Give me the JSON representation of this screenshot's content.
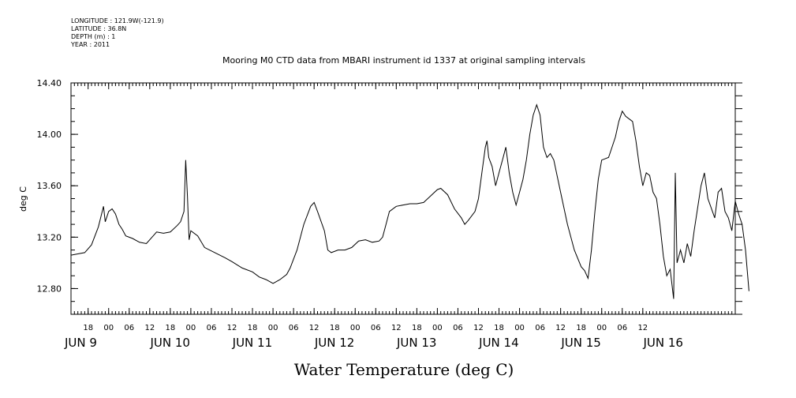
{
  "meta": {
    "longitude": "LONGITUDE : 121.9W(-121.9)",
    "latitude": "LATITUDE : 36.8N",
    "depth": "DEPTH (m) : 1",
    "year": "YEAR : 2011"
  },
  "chart_data": {
    "type": "line",
    "title": "Mooring M0 CTD data from MBARI instrument id 1337 at original sampling intervals",
    "xlabel": "Water Temperature (deg C)",
    "ylabel": "deg C",
    "ylim": [
      12.6,
      14.4
    ],
    "xlim": [
      "2011-06-08T13:00",
      "2011-06-16T15:00"
    ],
    "yticks": [
      "12.80",
      "13.20",
      "13.60",
      "14.00",
      "14.40"
    ],
    "x_hour_ticks": [
      {
        "t": "2011-06-08T18:00",
        "label": "18"
      },
      {
        "t": "2011-06-09T00:00",
        "label": "00"
      },
      {
        "t": "2011-06-09T06:00",
        "label": "06"
      },
      {
        "t": "2011-06-09T12:00",
        "label": "12"
      },
      {
        "t": "2011-06-09T18:00",
        "label": "18"
      },
      {
        "t": "2011-06-10T00:00",
        "label": "00"
      },
      {
        "t": "2011-06-10T06:00",
        "label": "06"
      },
      {
        "t": "2011-06-10T12:00",
        "label": "12"
      },
      {
        "t": "2011-06-10T18:00",
        "label": "18"
      },
      {
        "t": "2011-06-11T00:00",
        "label": "00"
      },
      {
        "t": "2011-06-11T06:00",
        "label": "06"
      },
      {
        "t": "2011-06-11T12:00",
        "label": "12"
      },
      {
        "t": "2011-06-11T18:00",
        "label": "18"
      },
      {
        "t": "2011-06-12T00:00",
        "label": "00"
      },
      {
        "t": "2011-06-12T06:00",
        "label": "06"
      },
      {
        "t": "2011-06-12T12:00",
        "label": "12"
      },
      {
        "t": "2011-06-12T18:00",
        "label": "18"
      },
      {
        "t": "2011-06-13T00:00",
        "label": "00"
      },
      {
        "t": "2011-06-13T06:00",
        "label": "06"
      },
      {
        "t": "2011-06-13T12:00",
        "label": "12"
      },
      {
        "t": "2011-06-13T18:00",
        "label": "18"
      },
      {
        "t": "2011-06-14T00:00",
        "label": "00"
      },
      {
        "t": "2011-06-14T06:00",
        "label": "06"
      },
      {
        "t": "2011-06-14T12:00",
        "label": "12"
      },
      {
        "t": "2011-06-14T18:00",
        "label": "18"
      },
      {
        "t": "2011-06-15T00:00",
        "label": "00"
      },
      {
        "t": "2011-06-15T06:00",
        "label": "06"
      },
      {
        "t": "2011-06-15T12:00",
        "label": "12"
      }
    ],
    "x_day_labels": [
      {
        "t": "2011-06-08T13:00",
        "label": "JUN  9"
      },
      {
        "t": "2011-06-09T14:00",
        "label": "JUN 10"
      },
      {
        "t": "2011-06-10T14:00",
        "label": "JUN 11"
      },
      {
        "t": "2011-06-11T14:00",
        "label": "JUN 12"
      },
      {
        "t": "2011-06-12T14:00",
        "label": "JUN 13"
      },
      {
        "t": "2011-06-13T14:00",
        "label": "JUN 14"
      },
      {
        "t": "2011-06-14T14:00",
        "label": "JUN 15"
      },
      {
        "t": "2011-06-15T14:00",
        "label": "JUN 16"
      }
    ],
    "series": [
      {
        "points": [
          [
            "2011-06-08T13:00",
            13.06
          ],
          [
            "2011-06-08T15:00",
            13.07
          ],
          [
            "2011-06-08T17:00",
            13.08
          ],
          [
            "2011-06-08T19:00",
            13.14
          ],
          [
            "2011-06-08T21:00",
            13.28
          ],
          [
            "2011-06-08T22:30",
            13.44
          ],
          [
            "2011-06-08T23:00",
            13.32
          ],
          [
            "2011-06-09T00:00",
            13.4
          ],
          [
            "2011-06-09T01:00",
            13.42
          ],
          [
            "2011-06-09T02:00",
            13.38
          ],
          [
            "2011-06-09T03:00",
            13.3
          ],
          [
            "2011-06-09T04:00",
            13.26
          ],
          [
            "2011-06-09T05:00",
            13.21
          ],
          [
            "2011-06-09T07:00",
            13.19
          ],
          [
            "2011-06-09T09:00",
            13.16
          ],
          [
            "2011-06-09T11:00",
            13.15
          ],
          [
            "2011-06-09T13:00",
            13.21
          ],
          [
            "2011-06-09T14:00",
            13.24
          ],
          [
            "2011-06-09T16:00",
            13.23
          ],
          [
            "2011-06-09T18:00",
            13.24
          ],
          [
            "2011-06-09T20:00",
            13.29
          ],
          [
            "2011-06-09T21:00",
            13.32
          ],
          [
            "2011-06-09T22:00",
            13.4
          ],
          [
            "2011-06-09T22:30",
            13.8
          ],
          [
            "2011-06-09T23:00",
            13.52
          ],
          [
            "2011-06-09T23:30",
            13.18
          ],
          [
            "2011-06-10T00:00",
            13.25
          ],
          [
            "2011-06-10T02:00",
            13.21
          ],
          [
            "2011-06-10T04:00",
            13.12
          ],
          [
            "2011-06-10T07:00",
            13.08
          ],
          [
            "2011-06-10T10:00",
            13.04
          ],
          [
            "2011-06-10T12:00",
            13.01
          ],
          [
            "2011-06-10T15:00",
            12.96
          ],
          [
            "2011-06-10T18:00",
            12.93
          ],
          [
            "2011-06-10T20:00",
            12.89
          ],
          [
            "2011-06-10T22:00",
            12.87
          ],
          [
            "2011-06-11T00:00",
            12.84
          ],
          [
            "2011-06-11T02:00",
            12.87
          ],
          [
            "2011-06-11T04:00",
            12.91
          ],
          [
            "2011-06-11T05:00",
            12.96
          ],
          [
            "2011-06-11T07:00",
            13.1
          ],
          [
            "2011-06-11T09:00",
            13.3
          ],
          [
            "2011-06-11T11:00",
            13.44
          ],
          [
            "2011-06-11T12:00",
            13.47
          ],
          [
            "2011-06-11T13:00",
            13.4
          ],
          [
            "2011-06-11T15:00",
            13.25
          ],
          [
            "2011-06-11T16:00",
            13.1
          ],
          [
            "2011-06-11T17:00",
            13.08
          ],
          [
            "2011-06-11T19:00",
            13.1
          ],
          [
            "2011-06-11T21:00",
            13.1
          ],
          [
            "2011-06-11T23:00",
            13.12
          ],
          [
            "2011-06-12T01:00",
            13.17
          ],
          [
            "2011-06-12T03:00",
            13.18
          ],
          [
            "2011-06-12T05:00",
            13.16
          ],
          [
            "2011-06-12T07:00",
            13.17
          ],
          [
            "2011-06-12T08:00",
            13.2
          ],
          [
            "2011-06-12T09:00",
            13.3
          ],
          [
            "2011-06-12T10:00",
            13.4
          ],
          [
            "2011-06-12T12:00",
            13.44
          ],
          [
            "2011-06-12T14:00",
            13.45
          ],
          [
            "2011-06-12T16:00",
            13.46
          ],
          [
            "2011-06-12T18:00",
            13.46
          ],
          [
            "2011-06-12T20:00",
            13.47
          ],
          [
            "2011-06-12T22:00",
            13.52
          ],
          [
            "2011-06-13T00:00",
            13.57
          ],
          [
            "2011-06-13T01:00",
            13.58
          ],
          [
            "2011-06-13T03:00",
            13.53
          ],
          [
            "2011-06-13T05:00",
            13.42
          ],
          [
            "2011-06-13T07:00",
            13.35
          ],
          [
            "2011-06-13T08:00",
            13.3
          ],
          [
            "2011-06-13T09:00",
            13.33
          ],
          [
            "2011-06-13T11:00",
            13.4
          ],
          [
            "2011-06-13T12:00",
            13.5
          ],
          [
            "2011-06-13T13:00",
            13.7
          ],
          [
            "2011-06-13T14:00",
            13.9
          ],
          [
            "2011-06-13T14:30",
            13.95
          ],
          [
            "2011-06-13T15:00",
            13.82
          ],
          [
            "2011-06-13T16:00",
            13.75
          ],
          [
            "2011-06-13T17:00",
            13.6
          ],
          [
            "2011-06-13T18:00",
            13.7
          ],
          [
            "2011-06-13T19:00",
            13.8
          ],
          [
            "2011-06-13T20:00",
            13.9
          ],
          [
            "2011-06-13T21:00",
            13.7
          ],
          [
            "2011-06-13T22:00",
            13.55
          ],
          [
            "2011-06-13T23:00",
            13.45
          ],
          [
            "2011-06-14T00:00",
            13.55
          ],
          [
            "2011-06-14T01:00",
            13.65
          ],
          [
            "2011-06-14T02:00",
            13.8
          ],
          [
            "2011-06-14T03:00",
            14.0
          ],
          [
            "2011-06-14T04:00",
            14.15
          ],
          [
            "2011-06-14T05:00",
            14.23
          ],
          [
            "2011-06-14T06:00",
            14.15
          ],
          [
            "2011-06-14T07:00",
            13.9
          ],
          [
            "2011-06-14T08:00",
            13.82
          ],
          [
            "2011-06-14T09:00",
            13.85
          ],
          [
            "2011-06-14T10:00",
            13.8
          ],
          [
            "2011-06-14T12:00",
            13.55
          ],
          [
            "2011-06-14T14:00",
            13.3
          ],
          [
            "2011-06-14T16:00",
            13.1
          ],
          [
            "2011-06-14T18:00",
            12.97
          ],
          [
            "2011-06-14T19:00",
            12.94
          ],
          [
            "2011-06-14T20:00",
            12.88
          ],
          [
            "2011-06-14T21:00",
            13.1
          ],
          [
            "2011-06-14T22:00",
            13.4
          ],
          [
            "2011-06-14T23:00",
            13.65
          ],
          [
            "2011-06-15T00:00",
            13.8
          ],
          [
            "2011-06-15T02:00",
            13.82
          ],
          [
            "2011-06-15T03:00",
            13.9
          ],
          [
            "2011-06-15T04:00",
            13.98
          ],
          [
            "2011-06-15T05:00",
            14.1
          ],
          [
            "2011-06-15T06:00",
            14.18
          ],
          [
            "2011-06-15T07:00",
            14.14
          ],
          [
            "2011-06-15T09:00",
            14.1
          ],
          [
            "2011-06-15T10:00",
            13.95
          ],
          [
            "2011-06-15T11:00",
            13.75
          ],
          [
            "2011-06-15T12:00",
            13.6
          ],
          [
            "2011-06-15T13:00",
            13.7
          ],
          [
            "2011-06-15T14:00",
            13.68
          ],
          [
            "2011-06-15T15:00",
            13.55
          ],
          [
            "2011-06-15T16:00",
            13.5
          ],
          [
            "2011-06-15T17:00",
            13.3
          ],
          [
            "2011-06-15T18:00",
            13.05
          ],
          [
            "2011-06-15T19:00",
            12.9
          ],
          [
            "2011-06-15T20:00",
            12.95
          ],
          [
            "2011-06-15T21:00",
            12.72
          ],
          [
            "2011-06-15T21:30",
            13.7
          ],
          [
            "2011-06-15T22:00",
            13.0
          ],
          [
            "2011-06-15T23:00",
            13.1
          ],
          [
            "2011-06-16T00:00",
            13.0
          ],
          [
            "2011-06-16T01:00",
            13.15
          ],
          [
            "2011-06-16T02:00",
            13.05
          ],
          [
            "2011-06-16T03:00",
            13.25
          ],
          [
            "2011-06-16T05:00",
            13.6
          ],
          [
            "2011-06-16T06:00",
            13.7
          ],
          [
            "2011-06-16T07:00",
            13.5
          ],
          [
            "2011-06-16T09:00",
            13.35
          ],
          [
            "2011-06-16T10:00",
            13.55
          ],
          [
            "2011-06-16T11:00",
            13.58
          ],
          [
            "2011-06-16T12:00",
            13.4
          ],
          [
            "2011-06-16T13:00",
            13.35
          ],
          [
            "2011-06-16T14:00",
            13.25
          ],
          [
            "2011-06-16T15:00",
            13.48
          ],
          [
            "2011-06-16T16:00",
            13.38
          ],
          [
            "2011-06-16T17:00",
            13.3
          ],
          [
            "2011-06-16T18:00",
            13.1
          ],
          [
            "2011-06-16T19:00",
            12.78
          ]
        ]
      }
    ]
  }
}
